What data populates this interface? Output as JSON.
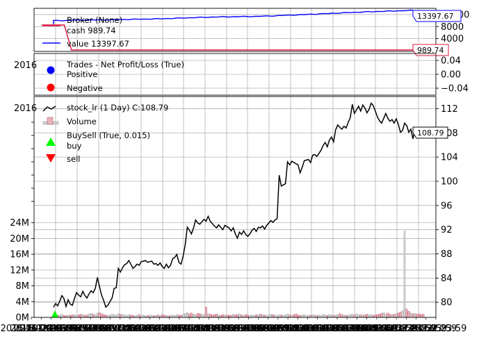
{
  "chart_data": [
    {
      "type": "line",
      "panel": "broker",
      "legend_title": "Broker (None)",
      "series": [
        {
          "name": "cash 989.74",
          "color": "#dc143c",
          "values": [
            10000,
            10000,
            989.74,
            989.74,
            989.74,
            989.74,
            989.74,
            989.74,
            989.74,
            989.74,
            989.74
          ]
        },
        {
          "name": "value 13397.67",
          "color": "#0000ff",
          "values": [
            10000,
            10000,
            10120,
            10250,
            10600,
            11200,
            11350,
            11500,
            12100,
            12800,
            13397.67
          ]
        }
      ],
      "x_fraction": [
        0.0,
        0.03,
        0.05,
        0.15,
        0.3,
        0.45,
        0.55,
        0.6,
        0.72,
        0.85,
        1.0
      ],
      "last_labels": {
        "value": "13397.67",
        "cash": "989.74"
      },
      "yticks": [
        "12000",
        "8000",
        "4000"
      ],
      "ylim": [
        0,
        14000
      ],
      "grid": true
    },
    {
      "type": "scatter",
      "panel": "trades",
      "legend_title": "Trades - Net Profit/Loss (True)",
      "series": [
        {
          "name": "Positive",
          "color": "#0000ff",
          "values": []
        },
        {
          "name": "Negative",
          "color": "#ff0000",
          "values": []
        }
      ],
      "yticks": [
        "0.04",
        "0.00",
        "−0.04"
      ],
      "ylim": [
        -0.06,
        0.06
      ],
      "grid": true
    },
    {
      "type": "line",
      "panel": "price",
      "series": [
        {
          "name": "stock_lr (1 Day) C:108.79",
          "color": "#000000"
        },
        {
          "name": "Volume",
          "color": "#e8b4bc"
        },
        {
          "name": "BuySell (True, 0.015)",
          "values": []
        },
        {
          "name": "buy",
          "color": "#00ff00"
        },
        {
          "name": "sell",
          "color": "#ff0000"
        }
      ],
      "price": [
        79.2,
        79.8,
        79.4,
        80.2,
        81.1,
        80.6,
        79.3,
        80.4,
        79.7,
        79.5,
        80.6,
        81.6,
        81.2,
        80.9,
        81.8,
        81.1,
        80.7,
        81.4,
        81.9,
        81.6,
        82.3,
        84.1,
        82.6,
        81.2,
        80.3,
        79.2,
        79.5,
        80.1,
        80.7,
        82.3,
        82.4,
        85.6,
        85.0,
        85.7,
        86.2,
        86.4,
        86.9,
        86.3,
        85.6,
        85.9,
        86.3,
        86.1,
        86.7,
        86.8,
        86.9,
        86.6,
        86.7,
        86.8,
        86.3,
        86.4,
        86.1,
        86.5,
        85.9,
        85.6,
        86.3,
        85.7,
        86.1,
        87.2,
        87.4,
        87.9,
        86.6,
        86.3,
        87.6,
        89.5,
        92.4,
        91.9,
        91.3,
        92.3,
        93.6,
        93.1,
        92.9,
        93.3,
        93.7,
        93.4,
        94.2,
        93.4,
        93.0,
        92.6,
        92.3,
        92.8,
        92.4,
        92.0,
        92.7,
        92.5,
        92.3,
        91.8,
        92.3,
        91.3,
        90.6,
        91.6,
        91.2,
        91.8,
        91.2,
        90.9,
        91.3,
        91.9,
        92.2,
        91.7,
        92.4,
        92.3,
        92.6,
        92.1,
        92.7,
        93.1,
        93.5,
        93.2,
        93.6,
        93.8,
        101.0,
        99.2,
        99.4,
        99.6,
        103.2,
        102.7,
        103.3,
        103.1,
        102.9,
        102.7,
        101.4,
        102.3,
        103.4,
        103.5,
        103.6,
        103.1,
        104.3,
        104.4,
        104.1,
        104.6,
        105.1,
        105.9,
        106.4,
        105.7,
        106.8,
        107.3,
        106.5,
        108.5,
        109.3,
        108.9,
        108.6,
        109.1,
        108.8,
        109.7,
        110.5,
        112.7,
        111.2,
        111.8,
        112.4,
        111.6,
        112.6,
        112.1,
        111.3,
        111.9,
        112.9,
        112.5,
        111.6,
        110.6,
        110.0,
        109.6,
        110.4,
        111.2,
        110.4,
        109.9,
        110.2,
        109.6,
        110.3,
        109.4,
        108.1,
        108.4,
        109.6,
        109.2,
        108.1,
        108.6,
        107.0,
        108.79
      ],
      "volume_M": [
        0.4,
        0.7,
        0.5,
        0.6,
        0.8,
        0.5,
        0.4,
        0.6,
        0.5,
        0.6,
        0.7,
        0.5,
        0.6,
        0.8,
        0.7,
        0.5,
        0.6,
        0.9,
        1.0,
        0.8,
        0.7,
        1.1,
        1.2,
        0.9,
        0.7,
        0.6,
        0.5,
        0.6,
        0.8,
        0.7,
        0.6,
        0.9,
        0.8,
        0.7,
        0.6,
        0.5,
        0.7,
        0.6,
        0.5,
        0.4,
        0.6,
        0.7,
        0.5,
        0.6,
        0.4,
        0.5,
        0.6,
        0.5,
        0.4,
        0.5,
        0.6,
        0.5,
        0.7,
        0.6,
        0.5,
        0.4,
        0.5,
        0.6,
        0.5,
        0.7,
        0.6,
        0.5,
        0.8,
        1.0,
        1.2,
        0.9,
        1.1,
        0.8,
        0.7,
        1.0,
        0.9,
        0.8,
        0.7,
        2.6,
        0.9,
        0.8,
        0.6,
        0.7,
        0.8,
        0.6,
        0.5,
        0.7,
        0.6,
        0.5,
        0.6,
        0.5,
        0.8,
        0.6,
        0.7,
        0.9,
        0.6,
        0.5,
        0.7,
        0.6,
        0.5,
        0.6,
        0.5,
        0.7,
        0.6,
        0.8,
        0.7,
        0.6,
        0.5,
        0.6,
        0.8,
        0.7,
        0.6,
        0.5,
        0.7,
        0.6,
        0.5,
        0.7,
        0.8,
        0.6,
        0.5,
        0.7,
        0.9,
        0.6,
        0.5,
        0.6,
        0.7,
        0.5,
        0.6,
        0.5,
        0.7,
        0.6,
        0.5,
        0.6,
        0.5,
        0.8,
        0.6,
        0.5,
        0.7,
        0.6,
        0.5,
        0.6,
        0.7,
        0.9,
        0.7,
        0.6,
        0.5,
        0.6,
        0.7,
        0.8,
        0.6,
        0.9,
        0.7,
        0.6,
        0.7,
        0.6,
        0.8,
        0.6,
        0.7,
        0.5,
        0.6,
        0.7,
        0.8,
        1.0,
        1.2,
        0.9,
        1.1,
        0.8,
        0.7,
        0.8,
        0.9,
        1.1,
        1.3,
        1.7,
        21.9,
        2.1,
        1.5,
        1.1,
        0.9,
        1.0,
        0.8,
        0.9,
        0.7,
        0.8
      ],
      "buy_markers_index": [
        0
      ],
      "last_label": "108.79",
      "price_yticks": [
        "112",
        "108",
        "104",
        "100",
        "96",
        "92",
        "88",
        "84",
        "80"
      ],
      "volume_yticks": [
        "24M",
        "20M",
        "16M",
        "12M",
        "8M",
        "4M",
        "0M"
      ],
      "price_ylim": [
        77.5,
        114.0
      ],
      "volume_ylim": [
        0,
        56
      ],
      "xtick_labels": [
        "2016-09-16 23:59",
        "2016-10-28 23:59",
        "2016-12-08 23:59",
        "2017-01-19 23:59",
        "2017-03-02 23:59",
        "2017-04-13 23:59",
        "2017-05-25 23:59",
        "2017-07-06 23:59",
        "2017-08-17 23:59",
        "2017-09-28 23:59",
        "2017-11-08 23:59",
        "2017-12-20 23:59",
        "2018-02-01 23:59",
        "2018-03-15 23:59",
        "2018-04-26 23:59",
        "2018-06-07 23:59",
        "2018-07-19 23:59",
        "2018-08-30 23:59",
        "2018-10-11 23:59",
        "2018-11-21 23:59",
        "2019-01-03 23:59",
        "2019-02-14 23:59",
        "2019-03-28 23:59",
        "2019-05-09 23:59",
        "2019-06-20 23:59",
        "2019-08-01 23:59",
        "2019-09-12 23:59",
        "2019-10-24 23:59",
        "2019-12-05 23:59",
        "2020-01-17 23:59",
        "2020-02-28 23:59",
        "2020-04-09 23:59",
        "2020-05-21 23:59",
        "2020-07-02 23:59",
        "2020-08-13 23:59",
        "2020-09-24 23:59",
        "2020-11-05 23:59",
        "2020-12-17 23:59",
        "2021-01-28 23:59",
        "2021-03-11 23:59",
        "2021-04-22 23:59",
        "2021-06-03 23:59"
      ],
      "grid": true
    }
  ],
  "overlap_labels": {
    "trades": "2016",
    "price": "2016"
  }
}
